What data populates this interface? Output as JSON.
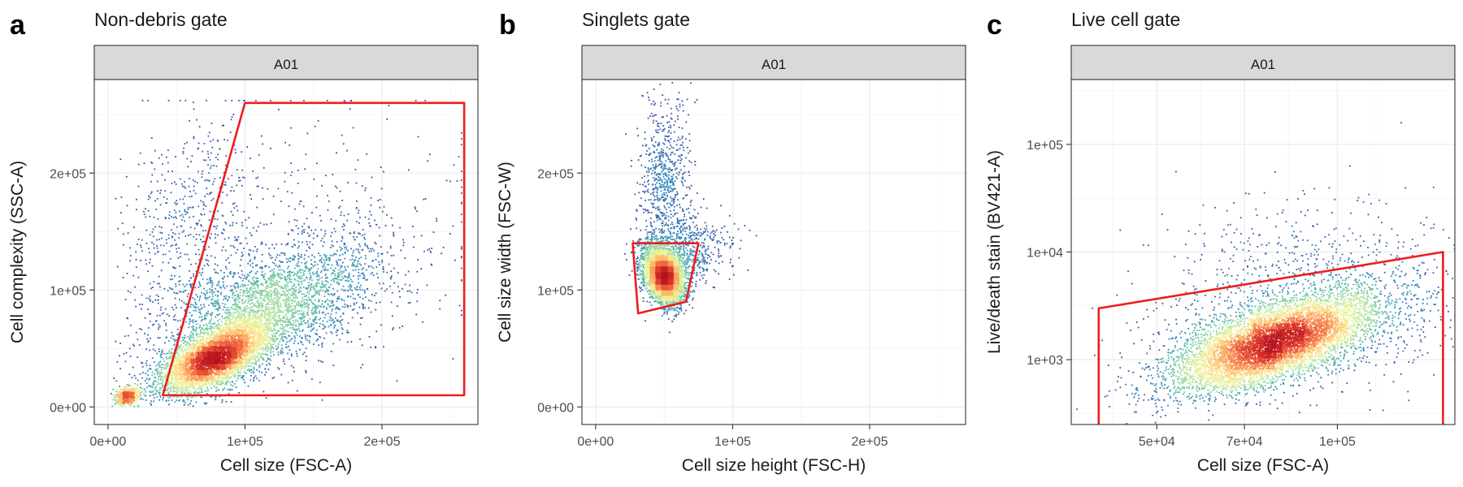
{
  "chart_data": [
    {
      "type": "scatter",
      "panel_letter": "a",
      "title": "Non-debris gate",
      "facet": "A01",
      "xlabel": "Cell size (FSC-A)",
      "ylabel": "Cell complexity (SSC-A)",
      "x_scale": "linear",
      "y_scale": "linear",
      "xlim": [
        -10000,
        270000
      ],
      "ylim": [
        -15000,
        280000
      ],
      "x_ticks": [
        {
          "value": 0,
          "label": "0e+00"
        },
        {
          "value": 100000,
          "label": "1e+05"
        },
        {
          "value": 200000,
          "label": "2e+05"
        }
      ],
      "y_ticks": [
        {
          "value": 0,
          "label": "0e+00"
        },
        {
          "value": 100000,
          "label": "1e+05"
        },
        {
          "value": 200000,
          "label": "2e+05"
        }
      ],
      "grid": true,
      "gate": {
        "color": "#ee1c1c",
        "points": [
          [
            40000,
            10000
          ],
          [
            100000,
            260000
          ],
          [
            260000,
            260000
          ],
          [
            260000,
            10000
          ]
        ]
      },
      "density": {
        "clusters": [
          {
            "x": 78000,
            "y": 42000,
            "sx": 20000,
            "sy": 15000,
            "rho": 0.6,
            "n": 4500
          },
          {
            "x": 120000,
            "y": 85000,
            "sx": 38000,
            "sy": 28000,
            "rho": 0.55,
            "n": 2600
          },
          {
            "x": 14000,
            "y": 9000,
            "sx": 4500,
            "sy": 4000,
            "rho": 0.2,
            "n": 500
          },
          {
            "x": 60000,
            "y": 150000,
            "sx": 28000,
            "sy": 55000,
            "rho": 0.3,
            "n": 600
          },
          {
            "x": 150000,
            "y": 130000,
            "sx": 60000,
            "sy": 60000,
            "rho": 0.1,
            "n": 500
          }
        ],
        "saturation_y": 262000,
        "saturation_x": 258000
      }
    },
    {
      "type": "scatter",
      "panel_letter": "b",
      "title": "Singlets gate",
      "facet": "A01",
      "xlabel": "Cell size height (FSC-H)",
      "ylabel": "Cell size width (FSC-W)",
      "x_scale": "linear",
      "y_scale": "linear",
      "xlim": [
        -10000,
        270000
      ],
      "ylim": [
        -15000,
        280000
      ],
      "x_ticks": [
        {
          "value": 0,
          "label": "0e+00"
        },
        {
          "value": 100000,
          "label": "1e+05"
        },
        {
          "value": 200000,
          "label": "2e+05"
        }
      ],
      "y_ticks": [
        {
          "value": 0,
          "label": "0e+00"
        },
        {
          "value": 100000,
          "label": "1e+05"
        },
        {
          "value": 200000,
          "label": "2e+05"
        }
      ],
      "grid": true,
      "gate": {
        "color": "#ee1c1c",
        "points": [
          [
            27000,
            140000
          ],
          [
            75000,
            140000
          ],
          [
            66000,
            90000
          ],
          [
            31000,
            80000
          ]
        ]
      },
      "density": {
        "clusters": [
          {
            "x": 50000,
            "y": 112000,
            "sx": 7000,
            "sy": 12000,
            "rho": -0.3,
            "n": 4200
          },
          {
            "x": 50000,
            "y": 195000,
            "sx": 9000,
            "sy": 35000,
            "rho": 0.05,
            "n": 700
          },
          {
            "x": 65000,
            "y": 135000,
            "sx": 16000,
            "sy": 14000,
            "rho": 0.0,
            "n": 600
          }
        ]
      }
    },
    {
      "type": "scatter",
      "panel_letter": "c",
      "title": "Live cell gate",
      "facet": "A01",
      "xlabel": "Cell size (FSC-A)",
      "ylabel": "Live/death stain (BV421-A)",
      "x_scale": "log10",
      "y_scale": "log10",
      "xlim": [
        36000,
        157000
      ],
      "ylim": [
        250,
        400000
      ],
      "x_ticks": [
        {
          "value": 50000,
          "label": "5e+04"
        },
        {
          "value": 70000,
          "label": "7e+04"
        },
        {
          "value": 100000,
          "label": "1e+05"
        }
      ],
      "y_ticks": [
        {
          "value": 1000,
          "label": "1e+03"
        },
        {
          "value": 10000,
          "label": "1e+04"
        },
        {
          "value": 100000,
          "label": "1e+05"
        }
      ],
      "grid": true,
      "gate": {
        "color": "#ee1c1c",
        "points": [
          [
            40000,
            150
          ],
          [
            40000,
            3000
          ],
          [
            150000,
            10000
          ],
          [
            150000,
            150
          ]
        ]
      },
      "density": {
        "clusters": [
          {
            "x": 78000,
            "y": 1400,
            "sx_log": 0.085,
            "sy_log": 0.22,
            "rho": 0.65,
            "n": 6500
          },
          {
            "x": 90000,
            "y": 2500,
            "sx_log": 0.13,
            "sy_log": 0.35,
            "rho": 0.3,
            "n": 1200
          },
          {
            "x": 85000,
            "y": 10000,
            "sx_log": 0.12,
            "sy_log": 0.3,
            "rho": 0.1,
            "n": 250
          }
        ]
      }
    }
  ]
}
